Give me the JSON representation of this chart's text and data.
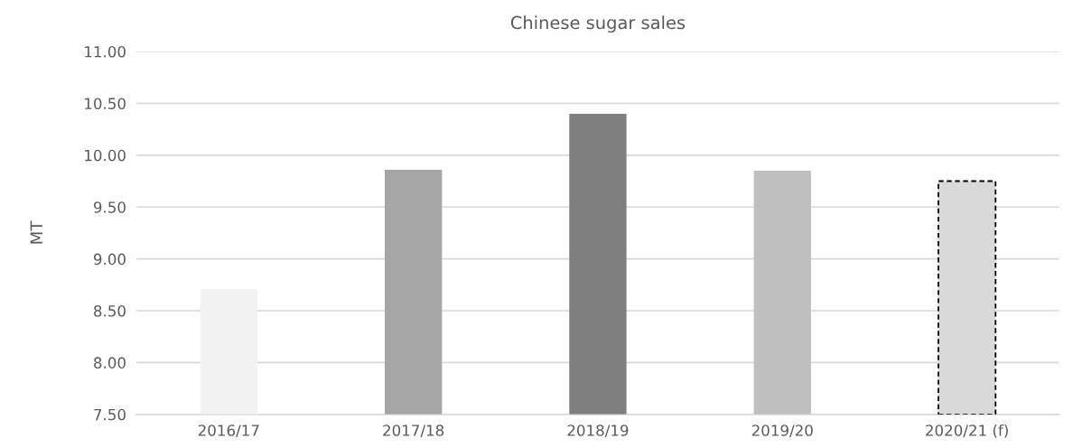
{
  "chart_data": {
    "type": "bar",
    "title": "Chinese sugar sales",
    "ylabel": "MT",
    "categories": [
      "2016/17",
      "2017/18",
      "2018/19",
      "2019/20",
      "2020/21 (f)"
    ],
    "series": [
      {
        "colors": [
          "#f2f2f2",
          "#a5a5a5",
          "#7f7f7f",
          "#bfbfbf",
          null
        ],
        "values": [
          8.71,
          9.86,
          10.4,
          9.85,
          null
        ]
      },
      {
        "color": "#d9d9d9",
        "line_style": "dashed",
        "values": [
          null,
          null,
          null,
          null,
          9.75
        ]
      }
    ],
    "ylim": [
      7.5,
      11.0
    ],
    "yticks": [
      {
        "value": 7.5,
        "label": "7.50"
      },
      {
        "value": 8.0,
        "label": "8.00"
      },
      {
        "value": 8.5,
        "label": "8.50"
      },
      {
        "value": 9.0,
        "label": "9.00"
      },
      {
        "value": 9.5,
        "label": "9.50"
      },
      {
        "value": 10.0,
        "label": "10.00"
      },
      {
        "value": 10.5,
        "label": "10.50"
      },
      {
        "value": 11.0,
        "label": "11.00"
      }
    ],
    "grid": "y",
    "legend": false
  }
}
